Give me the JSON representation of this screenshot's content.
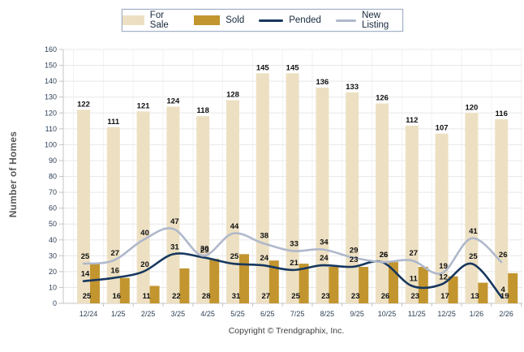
{
  "legend": {
    "items": [
      {
        "label": "For Sale",
        "kind": "bar"
      },
      {
        "label": "Sold",
        "kind": "bar"
      },
      {
        "label": "Pended",
        "kind": "line"
      },
      {
        "label": "New Listing",
        "kind": "line"
      }
    ]
  },
  "copyright": "Copyright © Trendgraphix, Inc.",
  "chart_data": {
    "type": "combo",
    "categories": [
      "12/24",
      "1/25",
      "2/25",
      "3/25",
      "4/25",
      "5/25",
      "6/25",
      "7/25",
      "8/25",
      "9/25",
      "10/25",
      "11/25",
      "12/25",
      "1/26",
      "2/26"
    ],
    "series": [
      {
        "name": "For Sale",
        "type": "bar",
        "color": "#EDE0C2",
        "values": [
          122,
          111,
          121,
          124,
          118,
          128,
          145,
          145,
          136,
          133,
          126,
          112,
          107,
          120,
          116
        ]
      },
      {
        "name": "Sold",
        "type": "bar",
        "color": "#C2952F",
        "values": [
          25,
          16,
          11,
          22,
          28,
          31,
          27,
          25,
          23,
          23,
          26,
          23,
          17,
          13,
          19
        ]
      },
      {
        "name": "Pended",
        "type": "line",
        "color": "#17375E",
        "values": [
          14,
          16,
          20,
          31,
          29,
          25,
          24,
          21,
          24,
          23,
          26,
          11,
          12,
          25,
          4
        ]
      },
      {
        "name": "New Listing",
        "type": "line",
        "color": "#AFB8CB",
        "values": [
          25,
          27,
          40,
          47,
          30,
          44,
          38,
          33,
          34,
          29,
          26,
          27,
          19,
          41,
          26
        ]
      }
    ],
    "title": "",
    "xlabel": "",
    "ylabel": "Number of Homes",
    "ylim": [
      0,
      160
    ],
    "ytick_step": 10,
    "grid": true,
    "legend_position": "top",
    "colors": {
      "grid_line": "#E8E8E8",
      "grid_line_vertical": "#F2F2F2",
      "axis_line": "#C4C4C4",
      "tick_label": "#2E4257",
      "value_label": "#111111"
    }
  }
}
